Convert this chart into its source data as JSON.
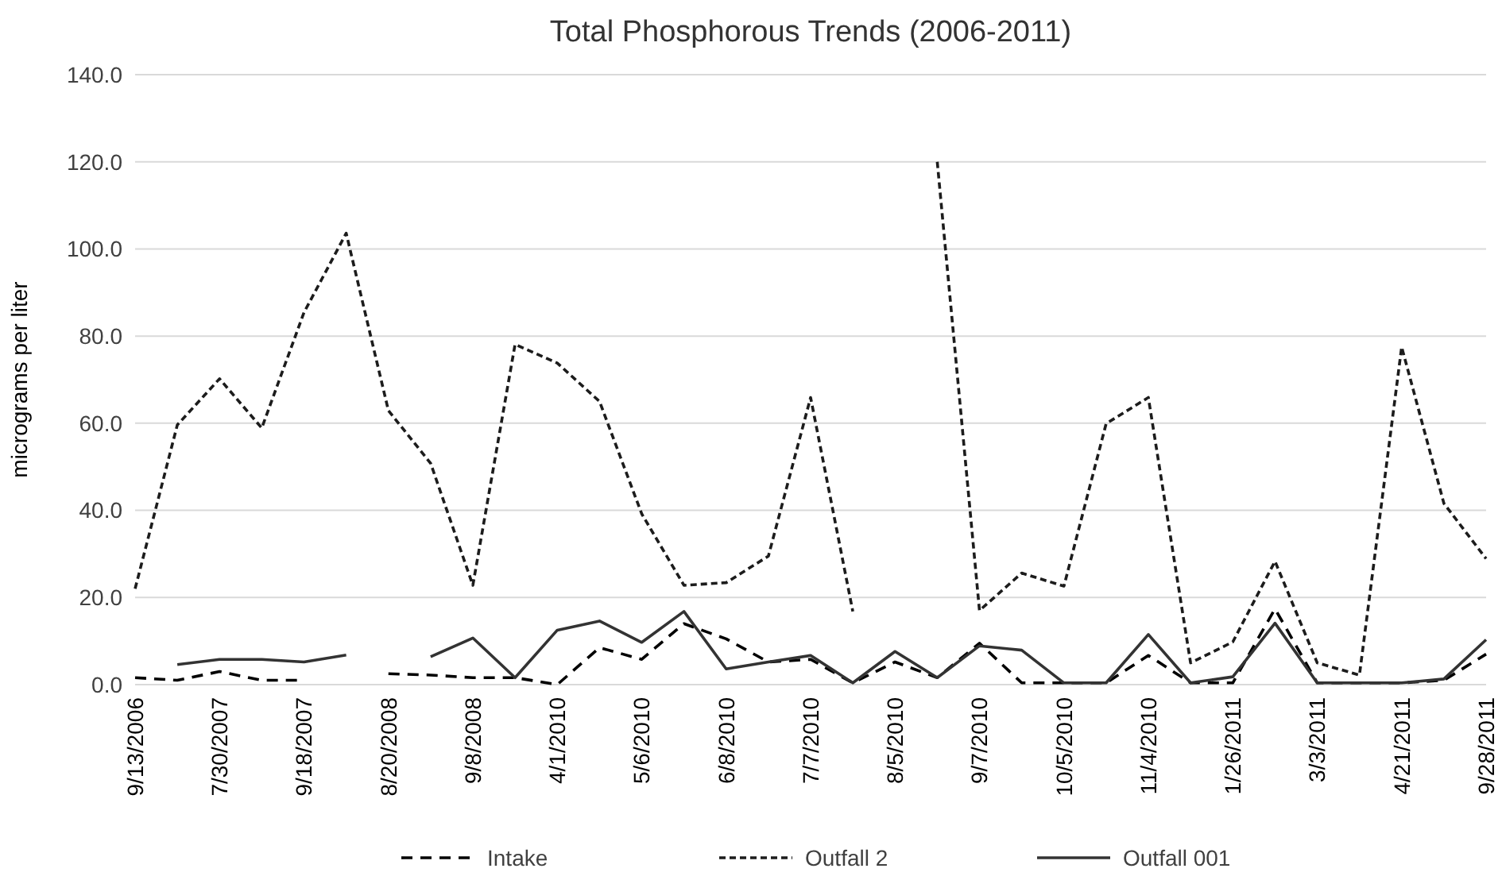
{
  "chart_data": {
    "type": "line",
    "title": "Total Phosphorous Trends (2006-2011)",
    "ylabel": "micrograms per liter",
    "categories": [
      "9/13/2006",
      null,
      "7/30/2007",
      null,
      "9/18/2007",
      null,
      "8/20/2008",
      null,
      "9/8/2008",
      null,
      "4/1/2010",
      null,
      "5/6/2010",
      null,
      "6/8/2010",
      null,
      "7/7/2010",
      null,
      "8/5/2010",
      null,
      "9/7/2010",
      null,
      "10/5/2010",
      null,
      "11/4/2010",
      null,
      "1/26/2011",
      null,
      "3/3/2011",
      null,
      "4/21/2011",
      null,
      "9/28/2011"
    ],
    "series": [
      {
        "name": "Intake",
        "color": "#000000",
        "line_style": "dashed",
        "values": [
          1.6,
          1.0,
          3.0,
          1.0,
          1.0,
          null,
          2.5,
          2.2,
          1.6,
          1.6,
          0,
          8.5,
          5.8,
          14.0,
          10.5,
          5.2,
          5.8,
          0.4,
          5.2,
          1.6,
          9.5,
          0.4,
          0.4,
          0.4,
          6.7,
          0.4,
          0.4,
          17.4,
          0.4,
          0.4,
          0.4,
          1.0,
          7.0
        ]
      },
      {
        "name": "Outfall 2",
        "color": "#1c1c1c",
        "line_style": "dotted",
        "values": [
          22.0,
          59.6,
          70.2,
          58.9,
          85.4,
          103.6,
          62.9,
          50.8,
          22.8,
          78.1,
          73.8,
          65.0,
          39.2,
          22.8,
          23.4,
          29.5,
          65.9,
          16.8,
          null,
          120.0,
          17.0,
          25.6,
          22.6,
          59.9,
          65.9,
          5.0,
          9.8,
          28.3,
          5.0,
          2.2,
          77.5,
          41.6,
          28.9
        ]
      },
      {
        "name": "Outfall 001",
        "color": "#333333",
        "line_style": "solid",
        "values": [
          null,
          4.6,
          5.8,
          5.8,
          5.2,
          6.8,
          null,
          6.4,
          10.7,
          1.6,
          12.5,
          14.6,
          9.7,
          16.8,
          3.6,
          5.2,
          6.7,
          0.4,
          7.6,
          1.6,
          8.9,
          7.9,
          0.4,
          0.4,
          11.5,
          0.4,
          1.8,
          14.1,
          0.4,
          0.4,
          0.4,
          1.3,
          10.3
        ]
      }
    ],
    "ylim": [
      0,
      140
    ],
    "yticks": [
      {
        "value": 0,
        "label": "0.0"
      },
      {
        "value": 20,
        "label": "20.0"
      },
      {
        "value": 40,
        "label": "40.0"
      },
      {
        "value": 60,
        "label": "60.0"
      },
      {
        "value": 80,
        "label": "80.0"
      },
      {
        "value": 100,
        "label": "100.0"
      },
      {
        "value": 120,
        "label": "120.0"
      },
      {
        "value": 140,
        "label": "140.0"
      }
    ],
    "grid": "y",
    "legend": "bottom",
    "marker": "none"
  }
}
